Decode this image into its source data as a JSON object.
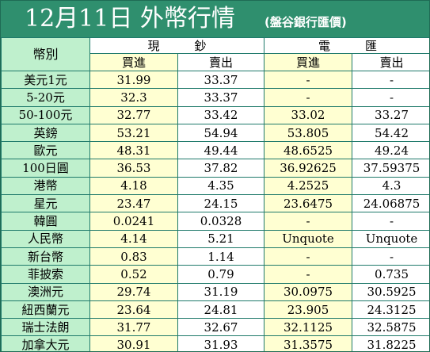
{
  "header": {
    "title": "12月11日 外幣行情",
    "source": "(盤谷銀行匯價)"
  },
  "table": {
    "corner_label": "幣別",
    "group_cash": "現鈔",
    "group_remit": "電匯",
    "sub_cash_buy": "買進",
    "sub_cash_sell": "賣出",
    "sub_remit_buy": "買進",
    "sub_remit_sell": "賣出",
    "rows": [
      {
        "currency": "美元1元",
        "cash_buy": "31.99",
        "cash_sell": "33.37",
        "remit_buy": "-",
        "remit_sell": "-"
      },
      {
        "currency": "5-20元",
        "cash_buy": "32.3",
        "cash_sell": "33.37",
        "remit_buy": "-",
        "remit_sell": "-"
      },
      {
        "currency": "50-100元",
        "cash_buy": "32.77",
        "cash_sell": "33.42",
        "remit_buy": "33.02",
        "remit_sell": "33.27"
      },
      {
        "currency": "英鎊",
        "cash_buy": "53.21",
        "cash_sell": "54.94",
        "remit_buy": "53.805",
        "remit_sell": "54.42"
      },
      {
        "currency": "歐元",
        "cash_buy": "48.31",
        "cash_sell": "49.44",
        "remit_buy": "48.6525",
        "remit_sell": "49.24"
      },
      {
        "currency": "100日圓",
        "cash_buy": "36.53",
        "cash_sell": "37.82",
        "remit_buy": "36.92625",
        "remit_sell": "37.59375"
      },
      {
        "currency": "港幣",
        "cash_buy": "4.18",
        "cash_sell": "4.35",
        "remit_buy": "4.2525",
        "remit_sell": "4.3"
      },
      {
        "currency": "星元",
        "cash_buy": "23.47",
        "cash_sell": "24.15",
        "remit_buy": "23.6475",
        "remit_sell": "24.06875"
      },
      {
        "currency": "韓圓",
        "cash_buy": "0.0241",
        "cash_sell": "0.0328",
        "remit_buy": "-",
        "remit_sell": "-"
      },
      {
        "currency": "人民幣",
        "cash_buy": "4.14",
        "cash_sell": "5.21",
        "remit_buy": "Unquote",
        "remit_sell": "Unquote"
      },
      {
        "currency": "新台幣",
        "cash_buy": "0.83",
        "cash_sell": "1.14",
        "remit_buy": "-",
        "remit_sell": "-"
      },
      {
        "currency": "菲披索",
        "cash_buy": "0.52",
        "cash_sell": "0.79",
        "remit_buy": "-",
        "remit_sell": "0.735"
      },
      {
        "currency": "澳洲元",
        "cash_buy": "29.74",
        "cash_sell": "31.19",
        "remit_buy": "30.0975",
        "remit_sell": "30.5925"
      },
      {
        "currency": "紐西蘭元",
        "cash_buy": "23.64",
        "cash_sell": "24.81",
        "remit_buy": "23.905",
        "remit_sell": "24.3125"
      },
      {
        "currency": "瑞士法朗",
        "cash_buy": "31.77",
        "cash_sell": "32.67",
        "remit_buy": "32.1125",
        "remit_sell": "32.5875"
      },
      {
        "currency": "加拿大元",
        "cash_buy": "30.91",
        "cash_sell": "31.93",
        "remit_buy": "31.3575",
        "remit_sell": "31.8225"
      }
    ]
  },
  "colors": {
    "header_bg": "#2f8f6e",
    "label_bg": "#bff0cd",
    "cash_bg": "#ffffd2",
    "border": "#1f7a6b"
  }
}
